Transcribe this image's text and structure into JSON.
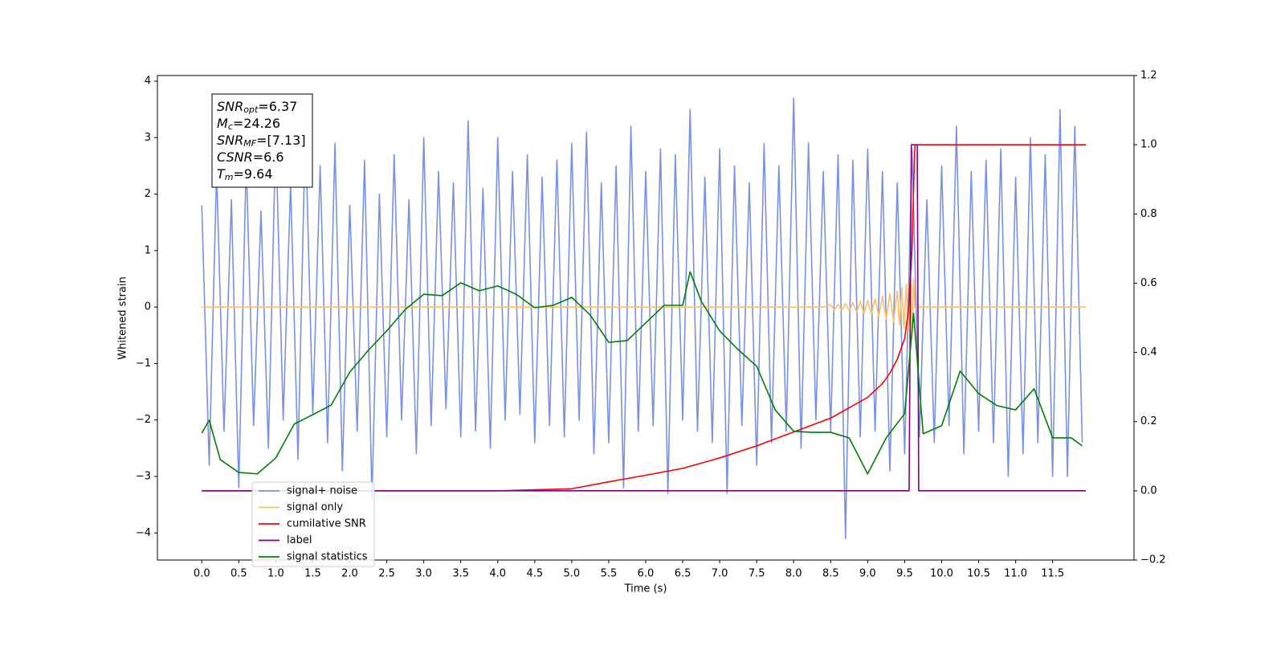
{
  "chart_data": {
    "type": "line",
    "x_label": "Time (s)",
    "y_label": "Whitened strain",
    "xlim": [
      -0.6,
      12.6
    ],
    "ylim": [
      -4.48,
      4.1
    ],
    "y2lim": [
      -0.2,
      1.2
    ],
    "xticks": [
      {
        "value": 0,
        "label": "0.0"
      },
      0.5,
      {
        "value": 1,
        "label": "1.0"
      },
      1.5,
      {
        "value": 2,
        "label": "2.0"
      },
      2.5,
      {
        "value": 3,
        "label": "3.0"
      },
      3.5,
      {
        "value": 4,
        "label": "4.0"
      },
      4.5,
      {
        "value": 5,
        "label": "5.0"
      },
      5.5,
      {
        "value": 6,
        "label": "6.0"
      },
      6.5,
      {
        "value": 7,
        "label": "7.0"
      },
      7.5,
      {
        "value": 8,
        "label": "8.0"
      },
      8.5,
      {
        "value": 9,
        "label": "9.0"
      },
      9.5,
      {
        "value": 10,
        "label": "10.0"
      },
      10.5,
      {
        "value": 11,
        "label": "11.0"
      },
      11.5
    ],
    "yticks": [
      {
        "value": -4,
        "label": "−4"
      },
      {
        "value": -3,
        "label": "−3"
      },
      {
        "value": -2,
        "label": "−2"
      },
      {
        "value": -1,
        "label": "−1"
      },
      0,
      1,
      2,
      3,
      4
    ],
    "y2ticks": [
      {
        "value": -0.2,
        "label": "−0.2"
      },
      {
        "value": 0,
        "label": "0.0"
      },
      0.2,
      0.4,
      0.6,
      0.8,
      {
        "value": 1,
        "label": "1.0"
      },
      1.2
    ],
    "legend": "lower left",
    "annotations": [
      {
        "text": "SNR",
        "sub": "opt",
        "rest": "=6.37"
      },
      {
        "text": "M",
        "sub": "c",
        "rest": "=24.26"
      },
      {
        "text": "SNR",
        "sub": "MF",
        "rest": "=[7.13]"
      },
      {
        "text": "CSNR",
        "sub": "",
        "rest": "=6.6"
      },
      {
        "text": "T",
        "sub": "m",
        "rest": "=9.64"
      }
    ],
    "series": [
      {
        "name": "signal+ noise",
        "color": "#7890e6",
        "axis": "y",
        "x": [
          0.0,
          0.1,
          0.2,
          0.3,
          0.4,
          0.5,
          0.6,
          0.7,
          0.8,
          0.9,
          1.0,
          1.1,
          1.2,
          1.3,
          1.4,
          1.5,
          1.6,
          1.7,
          1.8,
          1.9,
          2.0,
          2.1,
          2.2,
          2.3,
          2.4,
          2.5,
          2.6,
          2.7,
          2.8,
          2.9,
          3.0,
          3.1,
          3.2,
          3.3,
          3.4,
          3.5,
          3.6,
          3.7,
          3.8,
          3.9,
          4.0,
          4.1,
          4.2,
          4.3,
          4.4,
          4.5,
          4.6,
          4.7,
          4.8,
          4.9,
          5.0,
          5.1,
          5.2,
          5.3,
          5.4,
          5.5,
          5.6,
          5.7,
          5.8,
          5.9,
          6.0,
          6.1,
          6.2,
          6.3,
          6.4,
          6.5,
          6.6,
          6.7,
          6.8,
          6.9,
          7.0,
          7.1,
          7.2,
          7.3,
          7.4,
          7.5,
          7.6,
          7.7,
          7.8,
          7.9,
          8.0,
          8.1,
          8.2,
          8.3,
          8.4,
          8.5,
          8.6,
          8.7,
          8.8,
          8.9,
          9.0,
          9.1,
          9.2,
          9.3,
          9.4,
          9.5,
          9.6,
          9.7,
          9.8,
          9.9,
          10.0,
          10.1,
          10.2,
          10.3,
          10.4,
          10.5,
          10.6,
          10.7,
          10.8,
          10.9,
          11.0,
          11.1,
          11.2,
          11.3,
          11.4,
          11.5,
          11.6,
          11.7,
          11.8,
          11.9
        ],
        "values": [
          1.8,
          -2.8,
          2.4,
          -2.2,
          1.9,
          -3.2,
          2.6,
          -2.1,
          1.7,
          -2.5,
          3.1,
          -2.0,
          2.2,
          -2.7,
          3.2,
          -1.9,
          2.5,
          -2.4,
          2.9,
          -2.9,
          1.8,
          -2.2,
          2.6,
          -3.4,
          2.0,
          -2.3,
          2.7,
          -2.0,
          1.9,
          -2.6,
          3.0,
          -2.1,
          2.4,
          -1.8,
          2.2,
          -2.3,
          3.3,
          -2.2,
          2.1,
          -2.5,
          3.0,
          -2.0,
          2.4,
          -1.9,
          2.7,
          -2.4,
          2.3,
          -2.1,
          2.6,
          -2.3,
          2.9,
          -2.0,
          3.1,
          -2.6,
          2.2,
          -2.4,
          2.5,
          -3.2,
          3.2,
          -2.2,
          2.4,
          -2.1,
          2.8,
          -3.3,
          2.7,
          -2.0,
          3.5,
          -2.2,
          2.3,
          -2.4,
          2.8,
          -3.3,
          2.5,
          -2.1,
          2.2,
          -2.8,
          2.9,
          -2.4,
          2.5,
          -2.2,
          3.7,
          -2.5,
          2.9,
          -2.0,
          2.4,
          -2.2,
          2.7,
          -4.1,
          2.6,
          -2.3,
          2.8,
          -2.2,
          2.4,
          -2.9,
          2.2,
          -2.6,
          2.8,
          -2.3,
          1.9,
          -2.4,
          2.5,
          -2.1,
          3.2,
          -2.6,
          2.4,
          -2.2,
          2.6,
          -2.4,
          2.8,
          -3.0,
          2.3,
          -2.6,
          3.0,
          -2.4,
          2.7,
          -3.0,
          3.5,
          -3.0,
          3.2,
          -2.4
        ]
      },
      {
        "name": "signal only",
        "color": "#ffbf66",
        "axis": "y",
        "x": [
          0.0,
          8.4,
          8.5,
          8.55,
          8.6,
          8.65,
          8.7,
          8.75,
          8.8,
          8.85,
          8.9,
          8.95,
          9.0,
          9.05,
          9.1,
          9.15,
          9.2,
          9.25,
          9.3,
          9.35,
          9.4,
          9.43,
          9.46,
          9.49,
          9.52,
          9.55,
          9.58,
          9.6,
          9.62,
          9.64,
          11.95
        ],
        "values": [
          0,
          0,
          0.04,
          -0.05,
          0.05,
          -0.06,
          0.06,
          -0.07,
          0.08,
          -0.09,
          0.1,
          -0.11,
          0.12,
          -0.13,
          0.15,
          -0.17,
          0.19,
          -0.21,
          0.24,
          -0.26,
          0.29,
          -0.31,
          0.34,
          -0.37,
          0.4,
          -0.44,
          0.48,
          -0.53,
          0.5,
          0,
          0
        ]
      },
      {
        "name": "cumilative SNR",
        "color": "#ff0000",
        "axis": "y2",
        "x": [
          0.0,
          4.0,
          5.0,
          5.5,
          6.0,
          6.5,
          7.0,
          7.5,
          8.0,
          8.5,
          9.0,
          9.2,
          9.3,
          9.4,
          9.5,
          9.55,
          9.6,
          9.63,
          9.64,
          11.95
        ],
        "values": [
          0,
          0,
          0.006,
          0.026,
          0.045,
          0.065,
          0.095,
          0.13,
          0.17,
          0.21,
          0.27,
          0.31,
          0.34,
          0.38,
          0.44,
          0.52,
          0.7,
          0.95,
          1.0,
          1.0
        ]
      },
      {
        "name": "label",
        "color": "#800080",
        "axis": "y2",
        "x": [
          0.0,
          9.56,
          9.59,
          9.67,
          9.69,
          11.95
        ],
        "values": [
          0,
          0,
          1,
          1,
          0,
          0
        ]
      },
      {
        "name": "signal statistics",
        "color": "#008000",
        "axis": "y2",
        "x": [
          0.0,
          0.1,
          0.25,
          0.5,
          0.75,
          1.0,
          1.25,
          1.5,
          1.75,
          2.0,
          2.25,
          2.5,
          2.75,
          3.0,
          3.25,
          3.5,
          3.75,
          4.0,
          4.25,
          4.5,
          4.75,
          5.0,
          5.25,
          5.5,
          5.75,
          6.0,
          6.25,
          6.5,
          6.6,
          6.75,
          7.0,
          7.25,
          7.5,
          7.75,
          8.0,
          8.25,
          8.5,
          8.75,
          9.0,
          9.25,
          9.5,
          9.62,
          9.75,
          10.0,
          10.25,
          10.5,
          10.75,
          11.0,
          11.25,
          11.5,
          11.75,
          11.9
        ],
        "values": [
          0.167,
          0.204,
          0.09,
          0.053,
          0.049,
          0.095,
          0.193,
          0.22,
          0.248,
          0.343,
          0.406,
          0.462,
          0.524,
          0.568,
          0.564,
          0.601,
          0.578,
          0.592,
          0.568,
          0.529,
          0.536,
          0.559,
          0.508,
          0.429,
          0.434,
          0.485,
          0.536,
          0.536,
          0.633,
          0.548,
          0.462,
          0.408,
          0.36,
          0.234,
          0.172,
          0.169,
          0.169,
          0.153,
          0.049,
          0.153,
          0.223,
          0.513,
          0.165,
          0.188,
          0.346,
          0.281,
          0.246,
          0.234,
          0.295,
          0.153,
          0.153,
          0.13
        ]
      }
    ]
  }
}
